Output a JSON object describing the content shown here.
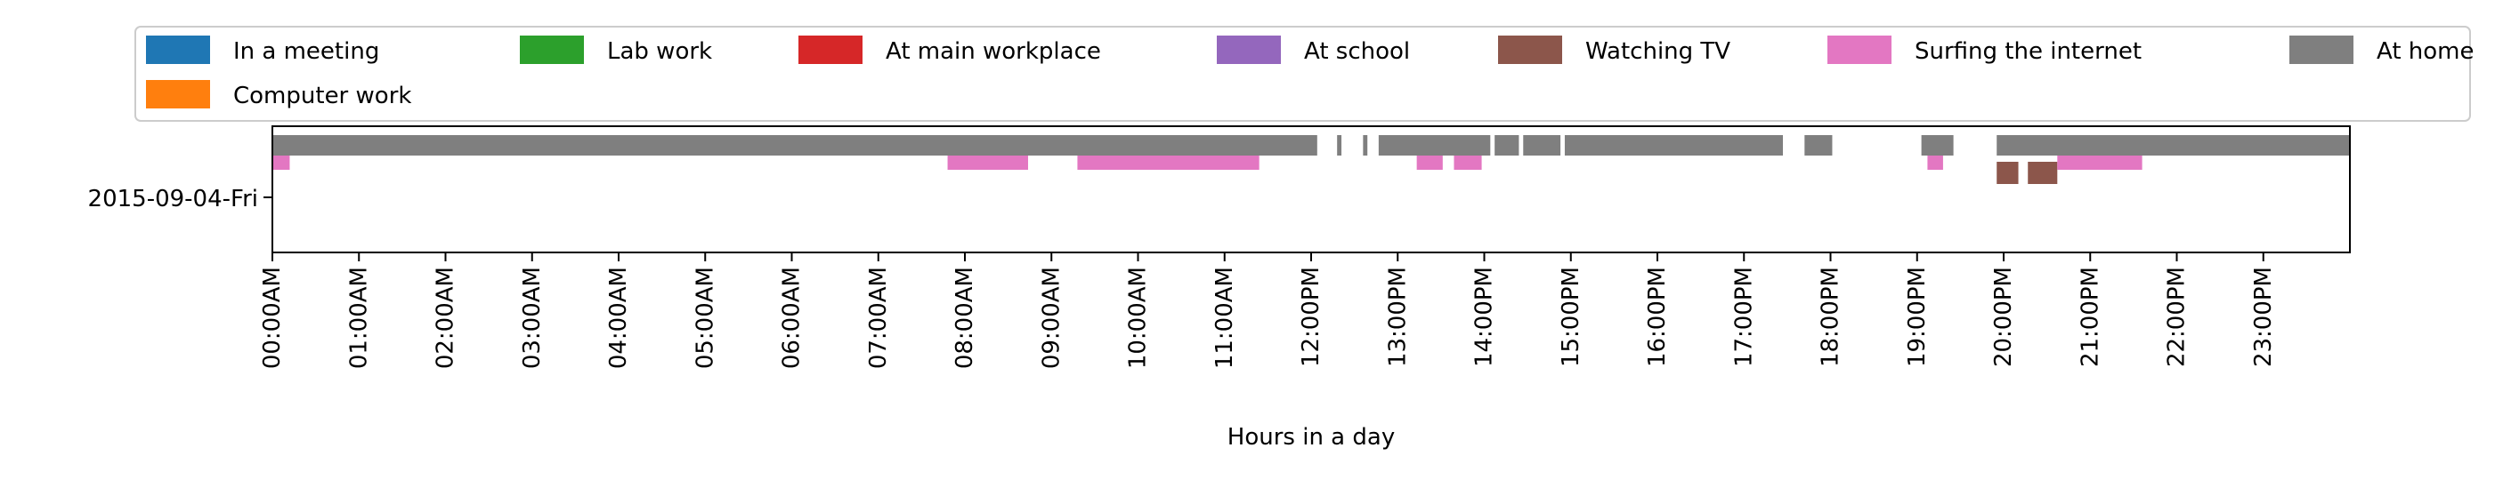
{
  "chart_data": {
    "type": "timeline",
    "xlabel": "Hours in a day",
    "ylabel": "",
    "xlim": [
      0,
      24
    ],
    "grid": false,
    "legend_position": "top",
    "row_label": "2015-09-04-Fri",
    "x_tick_labels": [
      "00:00AM",
      "01:00AM",
      "02:00AM",
      "03:00AM",
      "04:00AM",
      "05:00AM",
      "06:00AM",
      "07:00AM",
      "08:00AM",
      "09:00AM",
      "10:00AM",
      "11:00AM",
      "12:00PM",
      "13:00PM",
      "14:00PM",
      "15:00PM",
      "16:00PM",
      "17:00PM",
      "18:00PM",
      "19:00PM",
      "20:00PM",
      "21:00PM",
      "22:00PM",
      "23:00PM"
    ],
    "series": [
      {
        "name": "In a meeting",
        "color": "#1f77b4",
        "intervals": []
      },
      {
        "name": "Computer work",
        "color": "#ff7f0e",
        "intervals": []
      },
      {
        "name": "Lab work",
        "color": "#2ca02c",
        "intervals": []
      },
      {
        "name": "At main workplace",
        "color": "#d62728",
        "intervals": []
      },
      {
        "name": "At school",
        "color": "#9467bd",
        "intervals": []
      },
      {
        "name": "Watching TV",
        "color": "#8c564b",
        "intervals": [
          [
            19.92,
            20.17
          ],
          [
            20.28,
            20.62
          ]
        ]
      },
      {
        "name": "Surfing the internet",
        "color": "#e377c2",
        "intervals": [
          [
            0.0,
            0.2
          ],
          [
            7.8,
            8.73
          ],
          [
            9.3,
            11.4
          ],
          [
            13.22,
            13.52
          ],
          [
            13.65,
            13.97
          ],
          [
            19.12,
            19.3
          ],
          [
            20.62,
            21.6
          ]
        ]
      },
      {
        "name": "At home",
        "color": "#7f7f7f",
        "intervals": [
          [
            0.0,
            12.07
          ],
          [
            12.3,
            12.35
          ],
          [
            12.6,
            12.65
          ],
          [
            12.78,
            14.07
          ],
          [
            14.12,
            14.4
          ],
          [
            14.45,
            14.88
          ],
          [
            14.93,
            17.45
          ],
          [
            17.7,
            18.02
          ],
          [
            19.05,
            19.42
          ],
          [
            19.92,
            24.0
          ]
        ]
      }
    ]
  }
}
